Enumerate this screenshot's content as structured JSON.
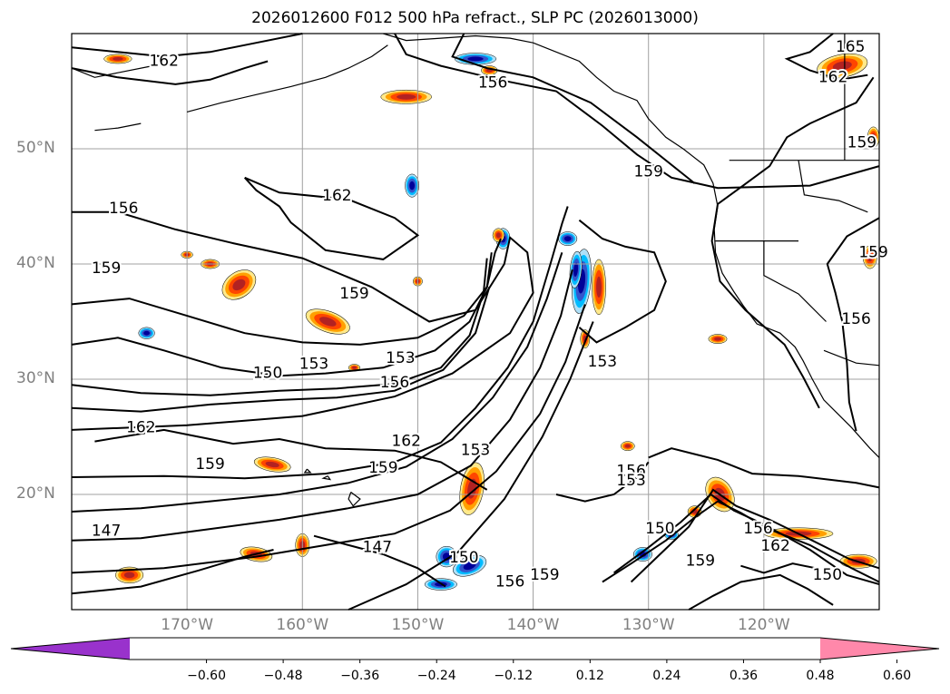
{
  "title": "2026012600 F012 500 hPa refract., SLP PC (2026013000)",
  "map": {
    "lat_labels": [
      {
        "label": "50°N",
        "lat": 50
      },
      {
        "label": "40°N",
        "lat": 40
      },
      {
        "label": "30°N",
        "lat": 30
      },
      {
        "label": "20°N",
        "lat": 20
      }
    ],
    "lon_labels": [
      {
        "label": "170°W",
        "lon": -170
      },
      {
        "label": "160°W",
        "lon": -160
      },
      {
        "label": "150°W",
        "lon": -150
      },
      {
        "label": "140°W",
        "lon": -140
      },
      {
        "label": "130°W",
        "lon": -130
      },
      {
        "label": "120°W",
        "lon": -120
      }
    ],
    "grid_color": "#a0a0a0",
    "contour_labels": [
      {
        "text": "162",
        "lon": -172.0,
        "lat": 57.6
      },
      {
        "text": "156",
        "lon": -143.5,
        "lat": 55.7
      },
      {
        "text": "165",
        "lon": -112.5,
        "lat": 58.8
      },
      {
        "text": "162",
        "lon": -114.0,
        "lat": 56.2
      },
      {
        "text": "159",
        "lon": -111.5,
        "lat": 50.5
      },
      {
        "text": "159",
        "lon": -130.0,
        "lat": 48.0
      },
      {
        "text": "162",
        "lon": -157.0,
        "lat": 45.9
      },
      {
        "text": "156",
        "lon": -175.5,
        "lat": 44.8
      },
      {
        "text": "159",
        "lon": -177.0,
        "lat": 39.6
      },
      {
        "text": "159",
        "lon": -155.5,
        "lat": 37.4
      },
      {
        "text": "153",
        "lon": -151.5,
        "lat": 31.8
      },
      {
        "text": "153",
        "lon": -159.0,
        "lat": 31.3
      },
      {
        "text": "150",
        "lon": -163.0,
        "lat": 30.5
      },
      {
        "text": "156",
        "lon": -152.0,
        "lat": 29.7
      },
      {
        "text": "153",
        "lon": -134.0,
        "lat": 31.5
      },
      {
        "text": "162",
        "lon": -174.0,
        "lat": 25.8
      },
      {
        "text": "162",
        "lon": -151.0,
        "lat": 24.6
      },
      {
        "text": "159",
        "lon": -168.0,
        "lat": 22.6
      },
      {
        "text": "159",
        "lon": -153.0,
        "lat": 22.3
      },
      {
        "text": "153",
        "lon": -145.0,
        "lat": 23.8
      },
      {
        "text": "156",
        "lon": -131.5,
        "lat": 22.0
      },
      {
        "text": "153",
        "lon": -131.5,
        "lat": 21.2
      },
      {
        "text": "147",
        "lon": -177.0,
        "lat": 16.8
      },
      {
        "text": "147",
        "lon": -153.5,
        "lat": 15.4
      },
      {
        "text": "150",
        "lon": -129.0,
        "lat": 17.0
      },
      {
        "text": "159",
        "lon": -125.5,
        "lat": 14.2
      },
      {
        "text": "156",
        "lon": -120.5,
        "lat": 17.0
      },
      {
        "text": "162",
        "lon": -119.0,
        "lat": 15.5
      },
      {
        "text": "150",
        "lon": -146.0,
        "lat": 14.5
      },
      {
        "text": "156",
        "lon": -142.0,
        "lat": 12.4
      },
      {
        "text": "159",
        "lon": -139.0,
        "lat": 13.0
      },
      {
        "text": "150",
        "lon": -114.5,
        "lat": 13.0
      },
      {
        "text": "156",
        "lon": -112.0,
        "lat": 35.2
      },
      {
        "text": "159",
        "lon": -110.5,
        "lat": 41.0
      }
    ]
  },
  "colorbar": {
    "ticks": [
      "−0.60",
      "−0.48",
      "−0.36",
      "−0.24",
      "−0.12",
      "0.12",
      "0.24",
      "0.36",
      "0.48",
      "0.60"
    ],
    "tick_values": [
      -0.6,
      -0.48,
      -0.36,
      -0.24,
      -0.12,
      0.12,
      0.24,
      0.36,
      0.48,
      0.6
    ],
    "colors": [
      "#9932cc",
      "#000099",
      "#3355cc",
      "#00bbff",
      "#aee0f8",
      "#ffffff",
      "#ffe98a",
      "#ffa000",
      "#ff4500",
      "#b22222",
      "#ff88aa"
    ],
    "edge_color": "#000000"
  }
}
